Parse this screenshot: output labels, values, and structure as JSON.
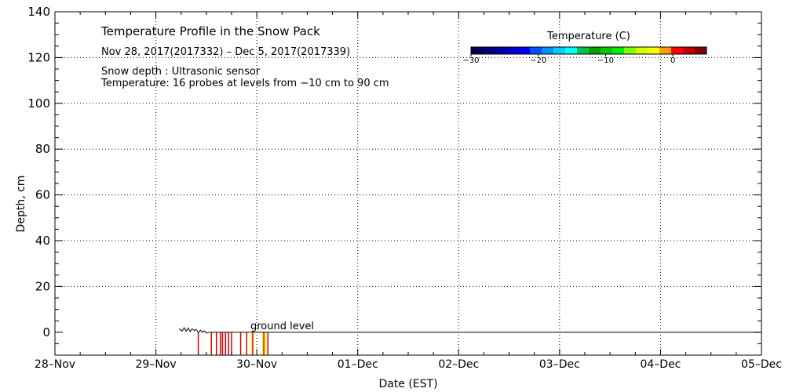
{
  "chart_data": {
    "type": "line",
    "title": "Temperature Profile in the Snow Pack",
    "date_range": "Nov 28, 2017(2017332) – Dec  5, 2017(2017339)",
    "info_lines": [
      "Snow depth : Ultrasonic sensor",
      "Temperature: 16 probes at levels from −10 cm to 90 cm"
    ],
    "xlabel": "Date (EST)",
    "ylabel": "Depth, cm",
    "x_ticks": [
      "28–Nov",
      "29–Nov",
      "30–Nov",
      "01–Dec",
      "02–Dec",
      "03–Dec",
      "04–Dec",
      "05–Dec"
    ],
    "xlim": [
      0,
      7
    ],
    "ylim": [
      -10,
      140
    ],
    "y_ticks": [
      0,
      20,
      40,
      60,
      80,
      100,
      120,
      140
    ],
    "grid": true,
    "ground_level_label": "ground level",
    "ground_level_value": 0,
    "snow_depth": {
      "name": "Snow depth",
      "x": [
        1.23,
        1.26,
        1.28,
        1.3,
        1.32,
        1.34,
        1.36,
        1.38,
        1.4,
        1.42,
        1.44,
        1.46,
        1.48,
        1.5,
        1.53
      ],
      "y": [
        1.5,
        0.5,
        2,
        0.5,
        1.8,
        0.3,
        1.5,
        0.8,
        1.2,
        -0.2,
        0.9,
        0,
        0.6,
        -0.3,
        0
      ]
    },
    "temperature_probes": [
      {
        "x": 1.42,
        "color": "#e00000"
      },
      {
        "x": 1.55,
        "color": "#e00000"
      },
      {
        "x": 1.6,
        "color": "#e00000"
      },
      {
        "x": 1.64,
        "color": "#e00000"
      },
      {
        "x": 1.66,
        "color": "#e00000"
      },
      {
        "x": 1.69,
        "color": "#e00000"
      },
      {
        "x": 1.72,
        "color": "#e00000"
      },
      {
        "x": 1.75,
        "color": "#e00000"
      },
      {
        "x": 1.84,
        "color": "#e00000"
      },
      {
        "x": 1.9,
        "color": "#e00000"
      },
      {
        "x": 1.95,
        "color": "#ffff00"
      },
      {
        "x": 1.96,
        "color": "#e00000"
      },
      {
        "x": 2.06,
        "color": "#ffff00"
      },
      {
        "x": 2.07,
        "color": "#e00000"
      },
      {
        "x": 2.09,
        "color": "#ffff00"
      },
      {
        "x": 2.11,
        "color": "#e00000"
      }
    ],
    "colorbar": {
      "title": "Temperature (C)",
      "range": [
        -30,
        5
      ],
      "tick_values": [
        -30,
        -20,
        -10,
        0
      ],
      "tick_labels": [
        "−30",
        "−20",
        "−10",
        "0"
      ],
      "colors": [
        "#000050",
        "#000078",
        "#0000a0",
        "#0000c8",
        "#0000f0",
        "#0050ff",
        "#0090ff",
        "#00d0ff",
        "#00ffff",
        "#00c050",
        "#00a000",
        "#00c800",
        "#00f000",
        "#80ff00",
        "#d0ff00",
        "#ffff00",
        "#ffa000",
        "#ff0000",
        "#c00000",
        "#800000"
      ]
    }
  }
}
